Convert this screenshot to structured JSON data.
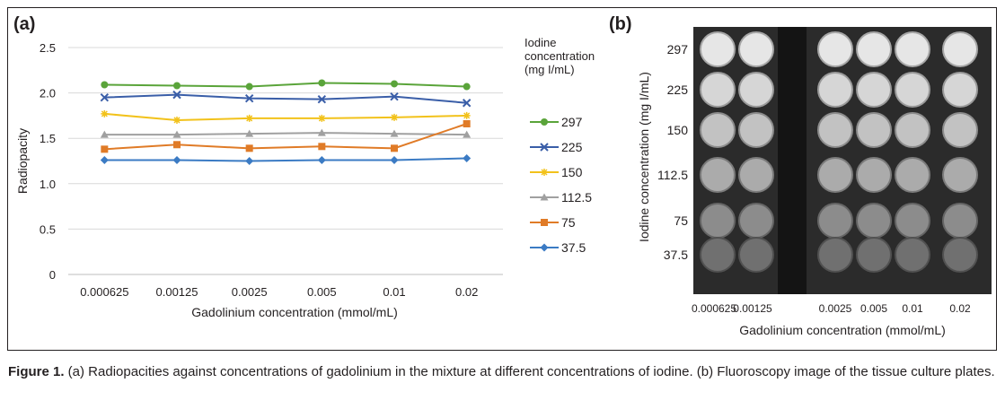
{
  "panel_a_label": "(a)",
  "panel_b_label": "(b)",
  "legend_title": "Iodine concentration (mg I/mL)",
  "caption": {
    "label": "Figure 1.",
    "text": " (a) Radiopacities against concentrations of gadolinium in the mixture at different concentrations of iodine. (b) Fluoroscopy image of the tissue culture plates."
  },
  "chart_data": [
    {
      "type": "line",
      "xlabel": "Gadolinium concentration (mmol/mL)",
      "ylabel": "Radiopacity",
      "categories": [
        "0.000625",
        "0.00125",
        "0.0025",
        "0.005",
        "0.01",
        "0.02"
      ],
      "ylim": [
        0,
        2.5
      ],
      "yticks": [
        "0",
        "0.5",
        "1.0",
        "1.5",
        "2.0",
        "2.5"
      ],
      "grid": true,
      "legend_placement": "right",
      "series": [
        {
          "name": "297",
          "color": "#5aa43a",
          "marker": "circle",
          "values": [
            2.09,
            2.08,
            2.07,
            2.11,
            2.1,
            2.07
          ]
        },
        {
          "name": "225",
          "color": "#3a5ea8",
          "marker": "x",
          "values": [
            1.95,
            1.98,
            1.94,
            1.93,
            1.96,
            1.89
          ]
        },
        {
          "name": "150",
          "color": "#f2c21b",
          "marker": "star",
          "values": [
            1.77,
            1.7,
            1.72,
            1.72,
            1.73,
            1.75
          ]
        },
        {
          "name": "112.5",
          "color": "#a0a0a0",
          "marker": "triangle",
          "values": [
            1.54,
            1.54,
            1.55,
            1.56,
            1.55,
            1.54
          ]
        },
        {
          "name": "75",
          "color": "#e07b27",
          "marker": "square",
          "values": [
            1.38,
            1.43,
            1.39,
            1.41,
            1.39,
            1.66
          ]
        },
        {
          "name": "37.5",
          "color": "#3b7bc4",
          "marker": "diamond",
          "values": [
            1.26,
            1.26,
            1.25,
            1.26,
            1.26,
            1.28
          ]
        }
      ]
    },
    {
      "type": "heatmap",
      "xlabel": "Gadolinium concentration (mmol/mL)",
      "ylabel": "Iodine concentration (mg I/mL)",
      "x_categories": [
        "0.000625",
        "0.00125",
        "0.0025",
        "0.005",
        "0.01",
        "0.02"
      ],
      "y_categories": [
        "297",
        "225",
        "150",
        "112.5",
        "75",
        "37.5"
      ],
      "brightness": [
        0.9,
        0.84,
        0.76,
        0.67,
        0.55,
        0.44
      ]
    }
  ]
}
